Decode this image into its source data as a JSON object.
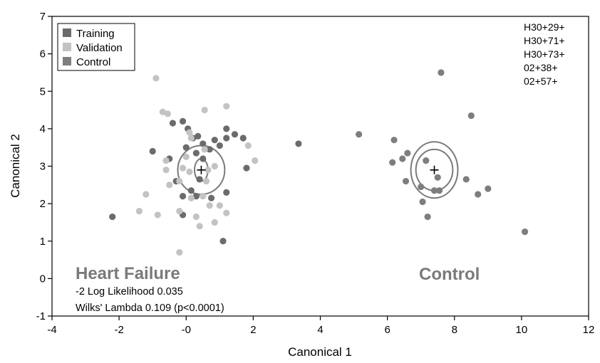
{
  "chart_data": {
    "type": "scatter",
    "xlabel": "Canonical 1",
    "ylabel": "Canonical 2",
    "xlim": [
      -4,
      12
    ],
    "ylim": [
      -1,
      7
    ],
    "xticks": [
      -4,
      -2,
      0,
      2,
      4,
      6,
      8,
      10,
      12
    ],
    "xtick_labels": [
      "-4",
      "-2",
      "-0",
      "2",
      "4",
      "6",
      "8",
      "10",
      "12"
    ],
    "yticks": [
      -1,
      0,
      1,
      2,
      3,
      4,
      5,
      6,
      7
    ],
    "ytick_labels": [
      "-1",
      "0",
      "1",
      "2",
      "3",
      "4",
      "5",
      "6",
      "7"
    ],
    "grid": false,
    "legend_position": "top-left",
    "series": [
      {
        "name": "Training",
        "color": "#6b6b6b",
        "points": [
          [
            -0.4,
            4.15
          ],
          [
            -0.1,
            4.2
          ],
          [
            0.05,
            4.0
          ],
          [
            0.35,
            3.8
          ],
          [
            0.2,
            3.75
          ],
          [
            0.5,
            3.6
          ],
          [
            0.85,
            3.7
          ],
          [
            1.0,
            3.55
          ],
          [
            1.2,
            4.0
          ],
          [
            1.45,
            3.85
          ],
          [
            1.7,
            3.75
          ],
          [
            1.2,
            3.75
          ],
          [
            -1.0,
            3.4
          ],
          [
            -0.5,
            3.2
          ],
          [
            0.3,
            3.35
          ],
          [
            0.5,
            3.2
          ],
          [
            0.7,
            3.45
          ],
          [
            1.8,
            2.95
          ],
          [
            -0.3,
            2.6
          ],
          [
            -0.1,
            2.2
          ],
          [
            0.3,
            2.2
          ],
          [
            0.75,
            2.15
          ],
          [
            1.2,
            2.3
          ],
          [
            -0.1,
            1.7
          ],
          [
            -2.2,
            1.65
          ],
          [
            1.1,
            1.0
          ],
          [
            3.35,
            3.6
          ],
          [
            0.0,
            3.5
          ],
          [
            0.4,
            2.65
          ],
          [
            0.15,
            2.35
          ]
        ]
      },
      {
        "name": "Validation",
        "color": "#c3c3c3",
        "points": [
          [
            -0.9,
            5.35
          ],
          [
            -0.7,
            4.45
          ],
          [
            -0.55,
            4.4
          ],
          [
            0.1,
            3.9
          ],
          [
            0.55,
            4.5
          ],
          [
            1.2,
            4.6
          ],
          [
            0.15,
            3.75
          ],
          [
            1.85,
            3.55
          ],
          [
            2.05,
            3.15
          ],
          [
            -0.6,
            3.15
          ],
          [
            -0.6,
            2.9
          ],
          [
            -0.1,
            2.95
          ],
          [
            0.65,
            2.9
          ],
          [
            0.85,
            3.0
          ],
          [
            0.1,
            2.85
          ],
          [
            -0.5,
            2.5
          ],
          [
            -0.2,
            2.6
          ],
          [
            0.6,
            2.6
          ],
          [
            0.15,
            2.15
          ],
          [
            0.5,
            2.2
          ],
          [
            0.7,
            1.95
          ],
          [
            1.0,
            1.95
          ],
          [
            -1.2,
            2.25
          ],
          [
            -1.4,
            1.8
          ],
          [
            -0.85,
            1.7
          ],
          [
            -0.2,
            1.8
          ],
          [
            0.3,
            1.65
          ],
          [
            1.2,
            1.75
          ],
          [
            0.85,
            1.5
          ],
          [
            0.4,
            1.4
          ],
          [
            -0.2,
            0.7
          ],
          [
            0.0,
            3.25
          ],
          [
            0.55,
            3.45
          ]
        ]
      },
      {
        "name": "Control",
        "color": "#7e7e7e",
        "points": [
          [
            7.6,
            5.5
          ],
          [
            8.5,
            4.35
          ],
          [
            5.15,
            3.85
          ],
          [
            6.2,
            3.7
          ],
          [
            6.6,
            3.35
          ],
          [
            6.45,
            3.2
          ],
          [
            6.15,
            3.1
          ],
          [
            6.55,
            2.6
          ],
          [
            7.0,
            2.45
          ],
          [
            7.4,
            2.35
          ],
          [
            7.55,
            2.35
          ],
          [
            8.35,
            2.65
          ],
          [
            9.0,
            2.4
          ],
          [
            8.7,
            2.25
          ],
          [
            7.05,
            2.05
          ],
          [
            7.2,
            1.65
          ],
          [
            10.1,
            1.25
          ],
          [
            7.15,
            3.15
          ],
          [
            7.5,
            2.7
          ]
        ]
      }
    ],
    "centroids": [
      {
        "group": "Heart Failure",
        "x": 0.45,
        "y": 2.9,
        "ellipses": [
          [
            0.2,
            0.3
          ],
          [
            0.7,
            0.65
          ]
        ]
      },
      {
        "group": "Control",
        "x": 7.4,
        "y": 2.9,
        "ellipses": [
          [
            0.55,
            0.55
          ],
          [
            0.7,
            0.75
          ]
        ]
      }
    ],
    "markers": [
      "H30+29+",
      "H30+71+",
      "H30+73+",
      "02+38+",
      "02+57+"
    ],
    "group_labels": [
      {
        "text": "Heart Failure",
        "x": -3.2,
        "y": 0.15
      },
      {
        "text": "Control",
        "x": 6.8,
        "y": 0.1
      }
    ],
    "stats": [
      "-2 Log Likelihood 0.035",
      "Wilks' Lambda 0.109 (p<0.0001)"
    ]
  }
}
